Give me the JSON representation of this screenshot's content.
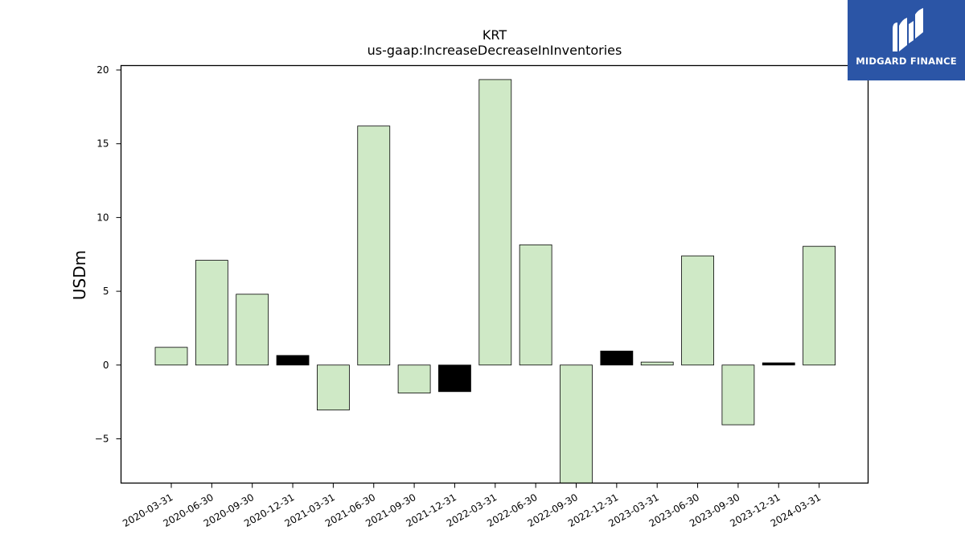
{
  "chart_data": {
    "type": "bar",
    "title": "KRT",
    "subtitle": "us-gaap:IncreaseDecreaseInInventories",
    "xlabel": "",
    "ylabel": "USDm",
    "ylim": [
      -8,
      20.3
    ],
    "yticks": [
      -5,
      0,
      5,
      10,
      15,
      20
    ],
    "ytick_labels": [
      "−5",
      "0",
      "5",
      "10",
      "15",
      "20"
    ],
    "grid": false,
    "legend": "none",
    "categories": [
      "2020-03-31",
      "2020-06-30",
      "2020-09-30",
      "2020-12-31",
      "2021-03-31",
      "2021-06-30",
      "2021-09-30",
      "2021-12-31",
      "2022-03-31",
      "2022-06-30",
      "2022-09-30",
      "2022-12-31",
      "2023-03-31",
      "2023-06-30",
      "2023-09-30",
      "2023-12-31",
      "2024-03-31"
    ],
    "values": [
      1.2,
      7.1,
      4.8,
      0.65,
      -3.05,
      16.2,
      -1.9,
      -1.8,
      19.35,
      8.15,
      -8.5,
      0.95,
      0.2,
      7.4,
      -4.05,
      0.15,
      8.05
    ],
    "bar_colors": [
      "#cfe9c6",
      "#cfe9c6",
      "#cfe9c6",
      "#000000",
      "#cfe9c6",
      "#cfe9c6",
      "#cfe9c6",
      "#000000",
      "#cfe9c6",
      "#cfe9c6",
      "#cfe9c6",
      "#000000",
      "#cfe9c6",
      "#cfe9c6",
      "#cfe9c6",
      "#000000",
      "#cfe9c6"
    ]
  },
  "logo": {
    "text": "MIDGARD FINANCE",
    "background": "#2b55a6"
  }
}
